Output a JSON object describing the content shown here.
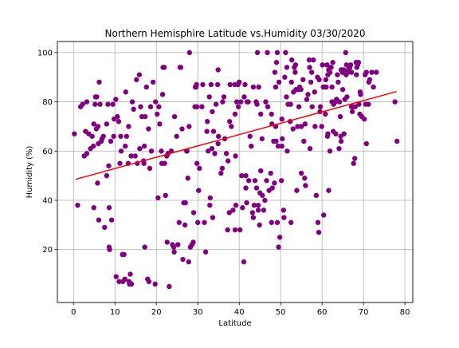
{
  "chart_data": {
    "type": "scatter",
    "title": "Northern Hemisphire Latitude vs.Humidity 03/30/2020",
    "xlabel": "Latitude",
    "ylabel": "Humidity (%)",
    "xlim": [
      -3.9,
      81.9
    ],
    "ylim": [
      -1.5,
      104.5
    ],
    "x_ticks": [
      0,
      10,
      20,
      30,
      40,
      50,
      60,
      70,
      80
    ],
    "y_ticks": [
      20,
      40,
      60,
      80,
      100
    ],
    "x_tick_labels": [
      "0",
      "10",
      "20",
      "30",
      "40",
      "50",
      "60",
      "70",
      "80"
    ],
    "y_tick_labels": [
      "20",
      "40",
      "60",
      "80",
      "100"
    ],
    "grid": true,
    "point_color": "#800080",
    "line_color": "#ff0000",
    "regression": {
      "slope": 0.46,
      "intercept": 48.3,
      "x_start": 0.5,
      "x_end": 78
    },
    "points": [
      [
        0.2,
        67
      ],
      [
        1,
        38
      ],
      [
        1.7,
        78
      ],
      [
        2.2,
        79
      ],
      [
        2.6,
        58
      ],
      [
        2.9,
        68
      ],
      [
        3.2,
        80
      ],
      [
        3.2,
        59
      ],
      [
        3.7,
        67
      ],
      [
        4.1,
        61
      ],
      [
        4.5,
        66
      ],
      [
        4.8,
        62
      ],
      [
        4.9,
        71
      ],
      [
        4.9,
        37
      ],
      [
        5.2,
        79
      ],
      [
        5.3,
        82
      ],
      [
        5.5,
        69
      ],
      [
        5.6,
        82
      ],
      [
        5.8,
        47
      ],
      [
        5.9,
        70
      ],
      [
        6,
        63
      ],
      [
        6.1,
        32
      ],
      [
        6.2,
        88
      ],
      [
        6.4,
        79
      ],
      [
        6.7,
        64
      ],
      [
        6.9,
        65
      ],
      [
        7.2,
        66
      ],
      [
        7.5,
        29
      ],
      [
        8,
        71
      ],
      [
        8,
        50
      ],
      [
        8.3,
        79
      ],
      [
        8.5,
        54
      ],
      [
        8.6,
        37
      ],
      [
        8.6,
        21
      ],
      [
        8.7,
        20
      ],
      [
        9,
        64
      ],
      [
        9.2,
        32
      ],
      [
        9.5,
        79
      ],
      [
        9.7,
        66
      ],
      [
        9.8,
        73
      ],
      [
        10.2,
        81
      ],
      [
        10.3,
        9
      ],
      [
        10.6,
        74
      ],
      [
        10.9,
        72
      ],
      [
        11,
        7
      ],
      [
        11.2,
        55
      ],
      [
        11.4,
        66
      ],
      [
        11.5,
        60
      ],
      [
        11.8,
        18
      ],
      [
        11.9,
        7
      ],
      [
        12.2,
        18
      ],
      [
        12.4,
        8
      ],
      [
        12.5,
        62
      ],
      [
        12.6,
        84
      ],
      [
        12.8,
        66
      ],
      [
        13.2,
        55
      ],
      [
        13.3,
        70
      ],
      [
        13.4,
        7
      ],
      [
        13.5,
        6
      ],
      [
        13.7,
        10
      ],
      [
        13.9,
        58
      ],
      [
        14,
        6
      ],
      [
        14.2,
        80
      ],
      [
        14.5,
        77
      ],
      [
        14.9,
        58
      ],
      [
        15.2,
        89
      ],
      [
        15.4,
        55
      ],
      [
        15.9,
        91
      ],
      [
        16,
        61
      ],
      [
        16.2,
        78
      ],
      [
        16.5,
        74
      ],
      [
        16.9,
        56
      ],
      [
        17,
        55
      ],
      [
        17.1,
        62
      ],
      [
        17.2,
        21
      ],
      [
        17.3,
        74
      ],
      [
        17.6,
        86
      ],
      [
        17.9,
        8
      ],
      [
        18.1,
        69
      ],
      [
        18.2,
        7
      ],
      [
        18.4,
        53
      ],
      [
        18.6,
        78
      ],
      [
        18.8,
        60
      ],
      [
        19.2,
        88
      ],
      [
        19.7,
        6
      ],
      [
        19.8,
        80
      ],
      [
        20.2,
        75
      ],
      [
        20.4,
        41
      ],
      [
        20.6,
        78
      ],
      [
        20.8,
        71
      ],
      [
        21.2,
        60
      ],
      [
        21.3,
        55
      ],
      [
        21.5,
        83
      ],
      [
        21.6,
        94
      ],
      [
        21.9,
        94
      ],
      [
        22,
        55
      ],
      [
        22.2,
        42
      ],
      [
        22.5,
        58
      ],
      [
        22.6,
        23
      ],
      [
        22.8,
        59
      ],
      [
        23.1,
        5
      ],
      [
        23.6,
        60
      ],
      [
        23.9,
        22
      ],
      [
        24.2,
        21
      ],
      [
        24.3,
        19
      ],
      [
        24.4,
        74
      ],
      [
        24.9,
        66
      ],
      [
        25.2,
        22
      ],
      [
        25.5,
        31
      ],
      [
        25.7,
        94
      ],
      [
        25.9,
        94
      ],
      [
        26.2,
        69
      ],
      [
        26.4,
        16
      ],
      [
        26.6,
        39
      ],
      [
        26.9,
        30
      ],
      [
        27,
        39
      ],
      [
        27.3,
        60
      ],
      [
        27.4,
        60
      ],
      [
        27.6,
        49
      ],
      [
        27.8,
        15
      ],
      [
        27.9,
        70
      ],
      [
        28,
        100
      ],
      [
        28.2,
        21
      ],
      [
        28.6,
        22
      ],
      [
        28.9,
        23
      ],
      [
        29,
        35
      ],
      [
        29.3,
        78
      ],
      [
        29.4,
        86
      ],
      [
        29.6,
        86
      ],
      [
        29.7,
        87
      ],
      [
        29.8,
        55
      ],
      [
        29.8,
        78
      ],
      [
        30,
        31
      ],
      [
        30.2,
        44
      ],
      [
        30.4,
        53
      ],
      [
        31,
        78
      ],
      [
        31.2,
        87
      ],
      [
        31.6,
        31
      ],
      [
        31.9,
        19
      ],
      [
        32.2,
        68
      ],
      [
        32.3,
        72
      ],
      [
        32.5,
        60
      ],
      [
        32.8,
        82
      ],
      [
        32.9,
        38
      ],
      [
        33,
        41
      ],
      [
        33.2,
        87
      ],
      [
        33.4,
        61
      ],
      [
        33.5,
        76
      ],
      [
        33.6,
        33
      ],
      [
        33.8,
        68
      ],
      [
        34.1,
        59
      ],
      [
        34.4,
        79
      ],
      [
        34.8,
        87
      ],
      [
        34.9,
        93
      ],
      [
        34.9,
        63
      ],
      [
        35,
        66
      ],
      [
        35.6,
        51
      ],
      [
        35.9,
        53
      ],
      [
        36,
        80
      ],
      [
        36.3,
        82
      ],
      [
        36.5,
        65
      ],
      [
        36.9,
        59
      ],
      [
        37.2,
        28
      ],
      [
        37.3,
        56
      ],
      [
        37.6,
        35
      ],
      [
        37.7,
        72
      ],
      [
        37.8,
        87
      ],
      [
        38.1,
        70
      ],
      [
        38.5,
        36
      ],
      [
        38.9,
        87
      ],
      [
        39,
        28
      ],
      [
        39,
        75
      ],
      [
        39.1,
        58
      ],
      [
        39.2,
        38
      ],
      [
        39.4,
        80
      ],
      [
        39.7,
        87
      ],
      [
        39.8,
        78
      ],
      [
        40,
        88
      ],
      [
        40.2,
        28
      ],
      [
        40.4,
        80
      ],
      [
        40.6,
        50
      ],
      [
        40.8,
        37
      ],
      [
        41.1,
        15
      ],
      [
        41.2,
        82
      ],
      [
        41.4,
        87
      ],
      [
        41.6,
        50
      ],
      [
        41.6,
        45
      ],
      [
        41.8,
        39
      ],
      [
        41.9,
        80
      ],
      [
        42.2,
        80
      ],
      [
        42.3,
        48
      ],
      [
        42.6,
        66
      ],
      [
        42.9,
        62
      ],
      [
        43.2,
        35
      ],
      [
        43.4,
        33
      ],
      [
        43.4,
        86
      ],
      [
        43.6,
        38
      ],
      [
        43.8,
        48
      ],
      [
        44.1,
        80
      ],
      [
        44.2,
        45
      ],
      [
        44.3,
        79
      ],
      [
        44.4,
        100
      ],
      [
        44.6,
        38
      ],
      [
        44.6,
        36
      ],
      [
        44.7,
        86
      ],
      [
        44.9,
        30
      ],
      [
        45,
        43
      ],
      [
        45.2,
        75
      ],
      [
        45.2,
        52
      ],
      [
        45.5,
        65
      ],
      [
        45.6,
        42
      ],
      [
        45.9,
        36
      ],
      [
        46.2,
        40
      ],
      [
        46.4,
        80
      ],
      [
        46.6,
        48
      ],
      [
        46.8,
        100
      ],
      [
        46.9,
        78
      ],
      [
        47.2,
        44
      ],
      [
        47.6,
        51
      ],
      [
        47.8,
        75
      ],
      [
        47.8,
        31
      ],
      [
        47.9,
        71
      ],
      [
        48,
        45
      ],
      [
        48.3,
        64
      ],
      [
        48.5,
        47
      ],
      [
        48.6,
        92
      ],
      [
        48.8,
        86
      ],
      [
        48.8,
        70
      ],
      [
        48.9,
        64
      ],
      [
        49,
        96
      ],
      [
        49.2,
        100
      ],
      [
        49.2,
        31
      ],
      [
        49.4,
        62
      ],
      [
        49.5,
        21
      ],
      [
        49.6,
        88
      ],
      [
        49.8,
        25
      ],
      [
        50.2,
        48
      ],
      [
        50.3,
        62
      ],
      [
        50.3,
        73
      ],
      [
        50.4,
        65
      ],
      [
        50.7,
        36
      ],
      [
        50.8,
        33
      ],
      [
        51,
        90
      ],
      [
        51.2,
        100
      ],
      [
        51.4,
        82
      ],
      [
        51.5,
        94
      ],
      [
        51.6,
        60
      ],
      [
        51.8,
        79
      ],
      [
        52.3,
        72
      ],
      [
        52.4,
        79
      ],
      [
        52.5,
        31
      ],
      [
        52.6,
        88
      ],
      [
        52.7,
        97
      ],
      [
        53,
        69
      ],
      [
        53.1,
        84
      ],
      [
        53.3,
        94
      ],
      [
        53.5,
        92
      ],
      [
        53.6,
        95
      ],
      [
        53.7,
        85
      ],
      [
        53.9,
        44
      ],
      [
        54.1,
        70
      ],
      [
        54.2,
        85
      ],
      [
        54.4,
        78
      ],
      [
        54.6,
        86
      ],
      [
        54.9,
        85
      ],
      [
        55,
        51
      ],
      [
        55,
        70
      ],
      [
        55.4,
        89
      ],
      [
        55.6,
        64
      ],
      [
        55.8,
        49
      ],
      [
        55.9,
        71
      ],
      [
        56,
        46
      ],
      [
        56.3,
        81
      ],
      [
        56.6,
        83
      ],
      [
        56.9,
        97
      ],
      [
        57,
        94
      ],
      [
        57.1,
        61
      ],
      [
        57.3,
        88
      ],
      [
        57.5,
        92
      ],
      [
        57.6,
        78
      ],
      [
        57.9,
        97
      ],
      [
        58.2,
        84
      ],
      [
        58.3,
        70
      ],
      [
        58.6,
        42
      ],
      [
        58.9,
        90
      ],
      [
        59,
        31
      ],
      [
        59.2,
        27
      ],
      [
        59.3,
        89
      ],
      [
        59.5,
        76
      ],
      [
        59.6,
        78
      ],
      [
        59.9,
        70
      ],
      [
        60.1,
        95
      ],
      [
        60.3,
        86
      ],
      [
        60.4,
        34
      ],
      [
        60.6,
        86
      ],
      [
        60.8,
        75
      ],
      [
        60.9,
        89
      ],
      [
        61,
        86
      ],
      [
        61.2,
        95
      ],
      [
        61.3,
        66
      ],
      [
        61.4,
        67
      ],
      [
        61.4,
        91
      ],
      [
        61.6,
        44
      ],
      [
        61.6,
        93
      ],
      [
        61.9,
        92
      ],
      [
        61.9,
        60
      ],
      [
        62.1,
        94
      ],
      [
        62.2,
        94
      ],
      [
        62.4,
        86
      ],
      [
        62.4,
        80
      ],
      [
        62.6,
        96
      ],
      [
        62.7,
        68
      ],
      [
        62.8,
        79
      ],
      [
        63,
        80
      ],
      [
        63.2,
        80
      ],
      [
        63.3,
        67
      ],
      [
        63.5,
        81
      ],
      [
        63.7,
        91
      ],
      [
        63.9,
        88
      ],
      [
        64.1,
        61
      ],
      [
        64.2,
        80
      ],
      [
        64.4,
        74
      ],
      [
        64.5,
        66
      ],
      [
        64.6,
        64
      ],
      [
        64.6,
        93
      ],
      [
        64.9,
        92
      ],
      [
        65,
        85
      ],
      [
        65.2,
        93
      ],
      [
        65.3,
        67
      ],
      [
        65.5,
        81
      ],
      [
        65.7,
        100
      ],
      [
        65.8,
        91
      ],
      [
        65.9,
        95
      ],
      [
        66,
        82
      ],
      [
        66.2,
        92
      ],
      [
        66.4,
        93
      ],
      [
        66.5,
        94
      ],
      [
        66.7,
        94
      ],
      [
        66.9,
        95
      ],
      [
        67.1,
        92
      ],
      [
        67.1,
        78
      ],
      [
        67.3,
        76
      ],
      [
        67.4,
        78
      ],
      [
        67.6,
        55
      ],
      [
        67.9,
        57
      ],
      [
        68,
        78
      ],
      [
        68.2,
        96
      ],
      [
        68.3,
        91
      ],
      [
        68.4,
        94
      ],
      [
        68.6,
        95
      ],
      [
        68.8,
        96
      ],
      [
        68.9,
        79
      ],
      [
        69.1,
        75
      ],
      [
        69.2,
        84
      ],
      [
        69.3,
        83
      ],
      [
        69.6,
        74
      ],
      [
        70.2,
        73
      ],
      [
        70.4,
        91
      ],
      [
        70.5,
        79
      ],
      [
        70.7,
        63
      ],
      [
        70.7,
        92
      ],
      [
        71.2,
        79
      ],
      [
        71.3,
        88
      ],
      [
        71.5,
        89
      ],
      [
        72,
        92
      ],
      [
        72.4,
        86
      ],
      [
        73.1,
        92
      ],
      [
        77.6,
        80
      ],
      [
        78.1,
        64
      ]
    ]
  }
}
